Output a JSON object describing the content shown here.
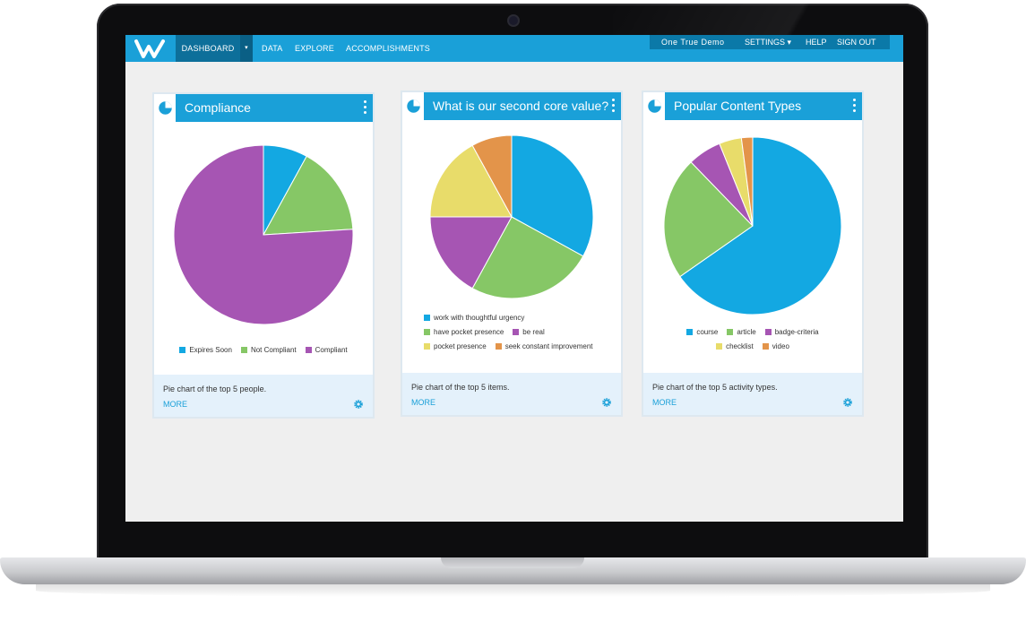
{
  "nav": {
    "logo": "W",
    "dashboard": "DASHBOARD",
    "caret": "▾",
    "data": "DATA",
    "explore": "EXPLORE",
    "accomplishments": "ACCOMPLISHMENTS",
    "user": "One True Demo",
    "settings": "SETTINGS ▾",
    "help": "HELP",
    "signout": "SIGN OUT"
  },
  "colors": {
    "accent": "#1aa0d8",
    "blue": "#13a8e2",
    "green": "#86c766",
    "purple": "#a655b3",
    "yellow": "#e8dc6a",
    "orange": "#e3944a"
  },
  "cards": [
    {
      "title": "Compliance",
      "description": "Pie chart of the top 5 people.",
      "more": "MORE",
      "legend_rows": [
        [
          "Expires Soon",
          "Not Compliant",
          "Compliant"
        ]
      ],
      "chart_data": {
        "type": "pie",
        "title": "Compliance",
        "labels": [
          "Expires Soon",
          "Not Compliant",
          "Compliant"
        ],
        "values": [
          8,
          16,
          76
        ],
        "colors": [
          "#13a8e2",
          "#86c766",
          "#a655b3"
        ]
      }
    },
    {
      "title": "What is our second core value?",
      "description": "Pie chart of the top 5 items.",
      "more": "MORE",
      "legend_rows": [
        [
          "work with thoughtful urgency"
        ],
        [
          "have pocket presence",
          "be real"
        ],
        [
          "pocket presence",
          "seek constant improvement"
        ]
      ],
      "chart_data": {
        "type": "pie",
        "title": "What is our second core value?",
        "labels": [
          "work with thoughtful urgency",
          "have pocket presence",
          "be real",
          "pocket presence",
          "seek constant improvement"
        ],
        "values": [
          33,
          25,
          17,
          17,
          8
        ],
        "colors": [
          "#13a8e2",
          "#86c766",
          "#a655b3",
          "#e8dc6a",
          "#e3944a"
        ]
      }
    },
    {
      "title": "Popular Content Types",
      "description": "Pie chart of the top 5 activity types.",
      "more": "MORE",
      "legend_rows": [
        [
          "course",
          "article",
          "badge-criteria"
        ],
        [
          "checklist",
          "video"
        ]
      ],
      "chart_data": {
        "type": "pie",
        "title": "Popular Content Types",
        "labels": [
          "course",
          "article",
          "badge-criteria",
          "checklist",
          "video"
        ],
        "values": [
          64,
          22,
          6,
          4,
          2
        ],
        "colors": [
          "#13a8e2",
          "#86c766",
          "#a655b3",
          "#e8dc6a",
          "#e3944a"
        ]
      }
    }
  ]
}
